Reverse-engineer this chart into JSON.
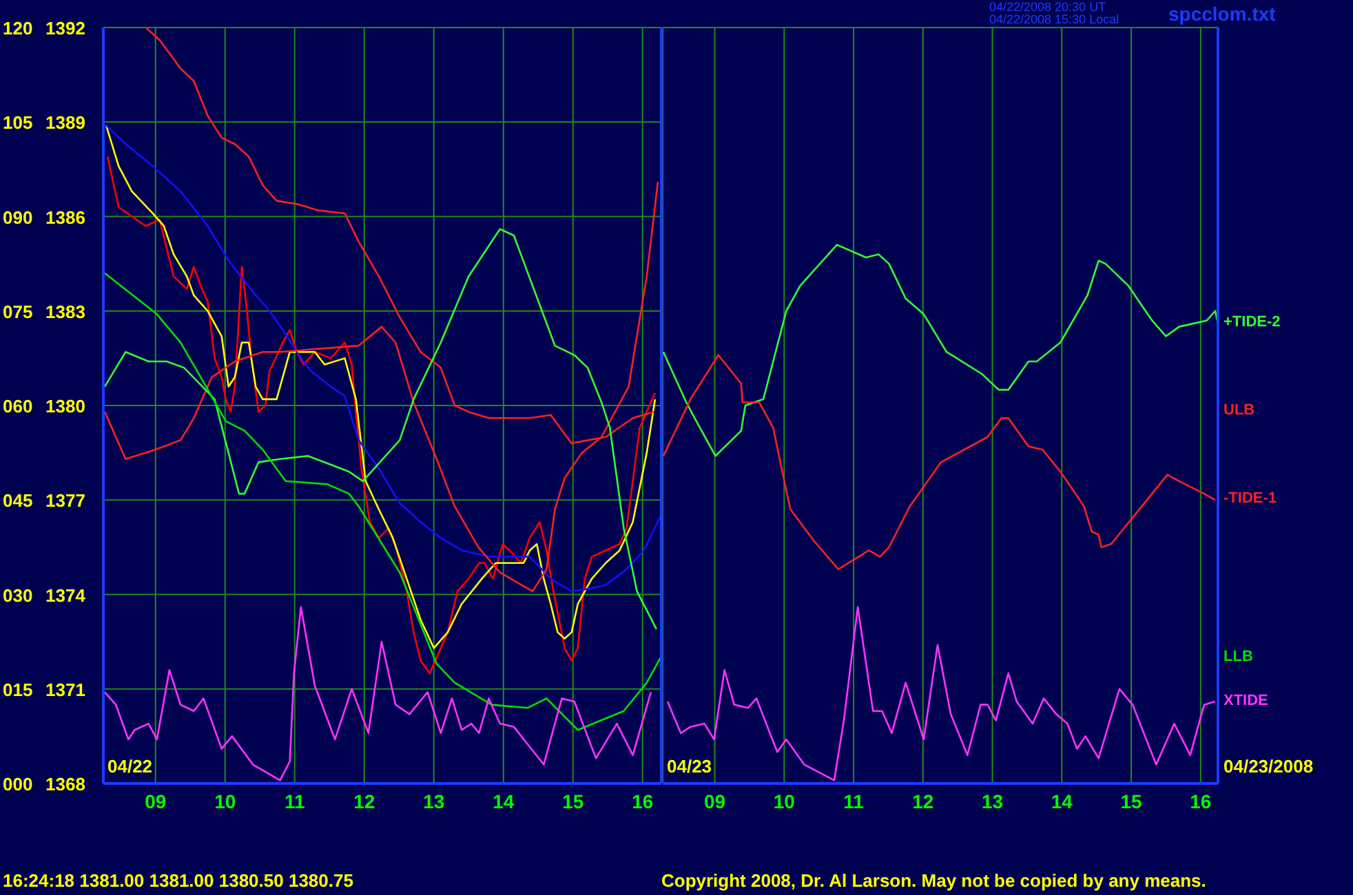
{
  "chart_data": [
    {
      "type": "line",
      "xlim": [
        8.25,
        16.27
      ],
      "ylim": [
        1368,
        1392
      ],
      "y2lim": [
        0,
        120
      ],
      "xticks": [
        {
          "value": 9,
          "label": "09"
        },
        10,
        11,
        12,
        13,
        14,
        15,
        16
      ],
      "yticks": [
        1368,
        1371,
        1374,
        1377,
        1380,
        1383,
        1386,
        1389,
        1392
      ],
      "y2ticks": [
        {
          "value": 0,
          "label": "000"
        },
        {
          "value": 15,
          "label": "015"
        },
        {
          "value": 30,
          "label": "030"
        },
        {
          "value": 45,
          "label": "045"
        },
        {
          "value": 60,
          "label": "060"
        },
        {
          "value": 75,
          "label": "075"
        },
        {
          "value": 90,
          "label": "090"
        },
        105,
        120
      ],
      "grid": true,
      "legend": false,
      "marker": "none",
      "line_style": "solid",
      "annotations": [
        "04/22/2008 20:30 UT",
        "04/22/2008 15:30 Local",
        "spcclom.txt",
        "16:24:18  1381.00 1381.00 1380.50 1380.75",
        "Copyright 2008, Dr. Al Larson. May not be copied by any means.",
        "04/22"
      ],
      "series": [
        {
          "color": "#ff0000",
          "x": [
            8.31,
            8.47,
            8.66,
            8.86,
            9.06,
            9.16,
            9.26,
            9.45,
            9.55,
            9.65,
            9.75,
            9.85,
            9.95,
            10.01,
            10.08,
            10.14,
            10.24,
            10.3,
            10.38,
            10.48,
            10.58,
            10.64,
            10.83,
            10.93,
            11.03,
            11.13,
            11.29,
            11.52,
            11.72,
            11.82,
            11.88,
            11.96,
            12.08,
            12.21,
            12.35,
            12.47,
            12.61,
            12.71,
            12.81,
            12.94,
            13.06,
            13.2,
            13.34,
            13.5,
            13.65,
            13.73,
            13.85,
            13.99,
            14.09,
            14.25,
            14.38,
            14.52,
            14.62,
            14.72,
            14.8,
            14.88,
            14.98,
            15.07,
            15.17,
            15.27,
            15.47,
            15.67,
            15.77,
            15.86,
            15.96,
            16.06,
            16.18
          ],
          "values": [
            1387.9,
            1386.3,
            1386.0,
            1385.7,
            1385.9,
            1385.0,
            1384.1,
            1383.7,
            1384.4,
            1383.8,
            1383.3,
            1381.5,
            1380.9,
            1380.2,
            1379.8,
            1380.6,
            1384.4,
            1383.3,
            1381.5,
            1379.8,
            1380.0,
            1381.1,
            1382.0,
            1382.4,
            1381.7,
            1381.3,
            1381.7,
            1381.5,
            1382.0,
            1381.3,
            1379.8,
            1378.0,
            1376.3,
            1375.8,
            1376.1,
            1375.4,
            1374.1,
            1372.8,
            1371.9,
            1371.5,
            1372.1,
            1372.8,
            1374.1,
            1374.5,
            1375.0,
            1375.0,
            1374.5,
            1375.6,
            1375.4,
            1375.0,
            1375.8,
            1376.3,
            1375.4,
            1374.1,
            1373.2,
            1372.3,
            1371.9,
            1372.3,
            1374.5,
            1375.2,
            1375.4,
            1375.6,
            1376.1,
            1377.6,
            1379.3,
            1379.8,
            1380.4
          ]
        },
        {
          "color": "#ffff00",
          "x": [
            8.29,
            8.47,
            8.66,
            8.96,
            9.12,
            9.26,
            9.45,
            9.55,
            9.75,
            9.95,
            10.05,
            10.14,
            10.24,
            10.34,
            10.44,
            10.54,
            10.74,
            10.93,
            11.09,
            11.29,
            11.43,
            11.72,
            11.88,
            12.02,
            12.21,
            12.41,
            12.61,
            12.81,
            13.0,
            13.2,
            13.4,
            13.69,
            13.89,
            14.09,
            14.29,
            14.38,
            14.48,
            14.58,
            14.68,
            14.78,
            14.88,
            14.98,
            15.07,
            15.27,
            15.47,
            15.67,
            15.86,
            16.06,
            16.18
          ],
          "values": [
            1388.9,
            1387.6,
            1386.8,
            1386.1,
            1385.7,
            1384.8,
            1384.1,
            1383.5,
            1383.0,
            1382.2,
            1380.6,
            1380.9,
            1382.0,
            1382.0,
            1380.6,
            1380.2,
            1380.2,
            1381.7,
            1381.7,
            1381.7,
            1381.3,
            1381.5,
            1380.2,
            1377.6,
            1376.7,
            1375.8,
            1374.5,
            1373.2,
            1372.3,
            1372.8,
            1373.7,
            1374.5,
            1375.0,
            1375.0,
            1375.0,
            1375.4,
            1375.6,
            1374.5,
            1373.7,
            1372.8,
            1372.6,
            1372.8,
            1373.7,
            1374.5,
            1375.0,
            1375.4,
            1376.3,
            1378.5,
            1380.2
          ]
        },
        {
          "color": "#1010ff",
          "x": [
            8.29,
            8.57,
            8.96,
            9.36,
            9.75,
            10.05,
            10.44,
            10.64,
            10.83,
            11.03,
            11.23,
            11.52,
            11.72,
            11.92,
            12.21,
            12.51,
            12.81,
            13.1,
            13.4,
            13.79,
            14.09,
            14.38,
            14.68,
            14.98,
            15.27,
            15.47,
            15.77,
            16.02,
            16.26
          ],
          "values": [
            1388.9,
            1388.3,
            1387.6,
            1386.8,
            1385.7,
            1384.6,
            1383.5,
            1383.0,
            1382.4,
            1381.7,
            1381.1,
            1380.6,
            1380.3,
            1378.9,
            1378.0,
            1376.9,
            1376.3,
            1375.8,
            1375.4,
            1375.2,
            1375.2,
            1375.2,
            1374.5,
            1374.1,
            1374.2,
            1374.3,
            1374.8,
            1375.4,
            1376.5
          ]
        },
        {
          "name": "ULB",
          "color": "#ff2020",
          "x": [
            8.86,
            9.06,
            9.36,
            9.55,
            9.75,
            9.95,
            10.14,
            10.34,
            10.54,
            10.74,
            11.03,
            11.33,
            11.72,
            11.92,
            12.21,
            12.51,
            12.81,
            13.1,
            13.3,
            13.5,
            13.79,
            14.38,
            14.68,
            14.98,
            15.47,
            15.86,
            16.16
          ],
          "values": [
            1392.0,
            1391.6,
            1390.7,
            1390.3,
            1389.2,
            1388.5,
            1388.3,
            1387.9,
            1387.0,
            1386.5,
            1386.4,
            1386.2,
            1386.1,
            1385.2,
            1384.1,
            1382.8,
            1381.7,
            1381.2,
            1380.0,
            1379.8,
            1379.6,
            1379.6,
            1379.7,
            1378.8,
            1379.0,
            1379.6,
            1379.8
          ]
        },
        {
          "color": "#ff2020",
          "x": [
            8.27,
            8.57,
            9.0,
            9.36,
            9.55,
            9.81,
            10.14,
            10.54,
            10.79,
            11.92,
            12.25,
            12.45,
            12.71,
            13.04,
            13.3,
            13.64,
            13.95,
            14.42,
            14.62,
            14.74,
            14.88,
            15.13,
            15.41,
            15.8,
            16.06,
            16.22
          ],
          "values": [
            1379.8,
            1378.3,
            1378.6,
            1378.9,
            1379.6,
            1380.9,
            1381.4,
            1381.7,
            1381.7,
            1381.9,
            1382.5,
            1382.0,
            1380.1,
            1378.3,
            1376.8,
            1375.5,
            1374.7,
            1374.1,
            1374.8,
            1376.7,
            1377.7,
            1378.5,
            1379.0,
            1380.6,
            1384.1,
            1387.1
          ]
        },
        {
          "color": "#33ff33",
          "x": [
            8.27,
            8.57,
            8.9,
            9.16,
            9.41,
            9.85,
            10.2,
            10.28,
            10.48,
            10.79,
            11.19,
            11.78,
            11.98,
            12.51,
            12.71,
            13.1,
            13.5,
            13.95,
            14.15,
            14.74,
            15.02,
            15.21,
            15.41,
            15.53,
            15.73,
            15.92,
            16.2
          ],
          "values": [
            1380.6,
            1381.7,
            1381.4,
            1381.4,
            1381.2,
            1380.2,
            1377.2,
            1377.2,
            1378.2,
            1378.3,
            1378.4,
            1377.9,
            1377.6,
            1378.9,
            1380.2,
            1382.0,
            1384.1,
            1385.6,
            1385.4,
            1381.9,
            1381.6,
            1381.2,
            1380.1,
            1379.3,
            1376.1,
            1374.1,
            1372.9
          ]
        },
        {
          "name": "LLB",
          "color": "#00e000",
          "x": [
            8.27,
            9.02,
            9.36,
            9.65,
            10.01,
            10.28,
            10.54,
            10.87,
            11.47,
            11.78,
            11.92,
            12.51,
            13.04,
            13.3,
            13.83,
            14.35,
            14.62,
            15.07,
            15.73,
            16.06,
            16.26
          ],
          "values": [
            1384.2,
            1382.9,
            1382.0,
            1380.9,
            1379.5,
            1379.2,
            1378.6,
            1377.6,
            1377.5,
            1377.2,
            1376.8,
            1374.7,
            1371.8,
            1371.2,
            1370.5,
            1370.4,
            1370.7,
            1369.7,
            1370.3,
            1371.2,
            1372.0
          ]
        },
        {
          "color": "#ff33ff",
          "x": [
            8.27,
            8.43,
            8.61,
            8.7,
            8.9,
            9.02,
            9.2,
            9.36,
            9.55,
            9.69,
            9.95,
            10.1,
            10.4,
            10.79,
            10.93,
            10.99,
            11.09,
            11.29,
            11.58,
            11.82,
            12.06,
            12.25,
            12.45,
            12.65,
            12.91,
            13.1,
            13.26,
            13.4,
            13.54,
            13.65,
            13.79,
            13.95,
            14.15,
            14.58,
            14.74,
            14.84,
            15.02,
            15.33,
            15.63,
            15.86,
            16.12
          ],
          "values": [
            1370.9,
            1370.5,
            1369.4,
            1369.7,
            1369.9,
            1369.4,
            1371.6,
            1370.5,
            1370.3,
            1370.7,
            1369.1,
            1369.5,
            1368.6,
            1368.1,
            1368.7,
            1371.5,
            1373.6,
            1371.1,
            1369.4,
            1371.0,
            1369.6,
            1372.5,
            1370.5,
            1370.2,
            1370.9,
            1369.6,
            1370.7,
            1369.7,
            1369.9,
            1369.6,
            1370.7,
            1369.9,
            1369.8,
            1368.6,
            1369.9,
            1370.7,
            1370.6,
            1368.8,
            1369.9,
            1368.9,
            1370.9
          ]
        }
      ]
    },
    {
      "type": "line",
      "xlim": [
        8.25,
        16.25
      ],
      "ylim": [
        1368,
        1392
      ],
      "tick_labels": "x",
      "xticks": [
        {
          "value": 9,
          "label": "09"
        },
        10,
        11,
        12,
        13,
        14,
        15,
        16
      ],
      "grid": true,
      "legend": false,
      "marker": "none",
      "line_style": "solid",
      "annotations": [
        "04/23",
        "04/23/2008"
      ],
      "series": [
        {
          "name": "+TIDE-2",
          "color": "#33ff33",
          "x": [
            8.26,
            8.59,
            8.71,
            9.01,
            9.38,
            9.44,
            9.7,
            10.03,
            10.23,
            10.76,
            11.18,
            11.36,
            11.51,
            11.75,
            12.01,
            12.34,
            12.85,
            13.09,
            13.23,
            13.52,
            13.64,
            13.98,
            14.37,
            14.53,
            14.63,
            14.96,
            15.3,
            15.5,
            15.69,
            16.09,
            16.21,
            16.25
          ],
          "values": [
            1381.7,
            1380.1,
            1379.6,
            1378.4,
            1379.2,
            1380.0,
            1380.2,
            1383.0,
            1383.8,
            1385.1,
            1384.7,
            1384.8,
            1384.5,
            1383.4,
            1382.9,
            1381.7,
            1381.0,
            1380.5,
            1380.5,
            1381.4,
            1381.4,
            1382.0,
            1383.5,
            1384.6,
            1384.5,
            1383.8,
            1382.7,
            1382.2,
            1382.5,
            1382.7,
            1383.0,
            1382.6
          ]
        },
        {
          "name": "-TIDE-1",
          "color": "#ff2020",
          "x": [
            8.26,
            8.65,
            9.05,
            9.38,
            9.4,
            9.64,
            9.84,
            10.03,
            10.09,
            10.43,
            10.78,
            11.22,
            11.38,
            11.51,
            11.81,
            12.26,
            12.93,
            13.13,
            13.23,
            13.52,
            13.72,
            13.98,
            14.32,
            14.43,
            14.53,
            14.57,
            14.71,
            15.3,
            15.52,
            15.69,
            16.05,
            16.21
          ],
          "values": [
            1378.4,
            1380.2,
            1381.6,
            1380.7,
            1380.1,
            1380.1,
            1379.3,
            1377.3,
            1376.7,
            1375.7,
            1374.8,
            1375.4,
            1375.2,
            1375.5,
            1376.8,
            1378.2,
            1379.0,
            1379.6,
            1379.6,
            1378.7,
            1378.6,
            1377.9,
            1376.8,
            1376.0,
            1375.9,
            1375.5,
            1375.6,
            1377.2,
            1377.8,
            1377.6,
            1377.2,
            1377.0
          ]
        },
        {
          "name": "XTIDE",
          "color": "#ff33ff",
          "x": [
            8.32,
            8.51,
            8.65,
            8.85,
            8.99,
            9.14,
            9.28,
            9.48,
            9.6,
            9.9,
            10.03,
            10.29,
            10.72,
            10.86,
            11.06,
            11.28,
            11.41,
            11.55,
            11.75,
            12.01,
            12.21,
            12.4,
            12.64,
            12.83,
            12.93,
            13.05,
            13.23,
            13.35,
            13.58,
            13.74,
            13.92,
            14.08,
            14.22,
            14.34,
            14.53,
            14.83,
            15.02,
            15.36,
            15.62,
            15.85,
            16.05,
            16.21
          ],
          "values": [
            1370.6,
            1369.6,
            1369.8,
            1369.9,
            1369.4,
            1371.6,
            1370.5,
            1370.4,
            1370.7,
            1369.0,
            1369.4,
            1368.6,
            1368.1,
            1370.0,
            1373.6,
            1370.3,
            1370.3,
            1369.6,
            1371.2,
            1369.4,
            1372.4,
            1370.2,
            1368.9,
            1370.5,
            1370.5,
            1370.0,
            1371.5,
            1370.6,
            1369.9,
            1370.7,
            1370.2,
            1369.9,
            1369.1,
            1369.5,
            1368.8,
            1371.0,
            1370.5,
            1368.6,
            1369.9,
            1368.9,
            1370.5,
            1370.6
          ]
        }
      ]
    }
  ]
}
